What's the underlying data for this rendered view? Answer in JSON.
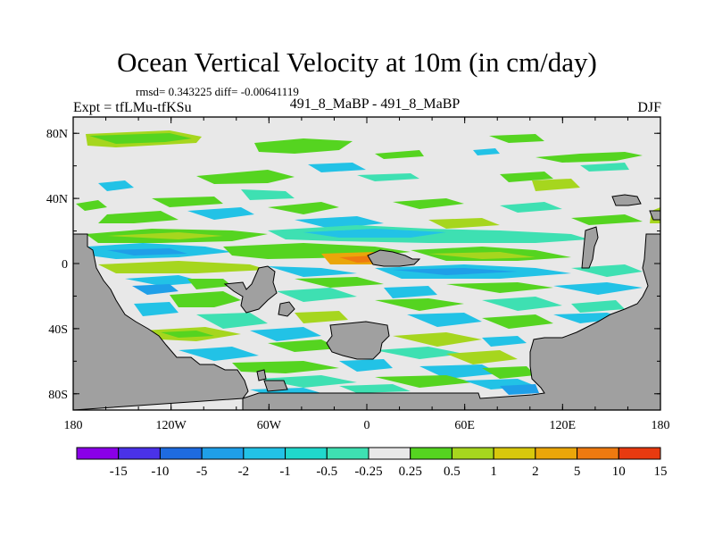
{
  "header": {
    "title": "Ocean Vertical Velocity at 10m (in cm/day)",
    "stats": "rmsd= 0.343225 diff= -0.00641119",
    "experiment": "Expt = tfLMu-tfKSu",
    "comparison": "491_8_MaBP - 491_8_MaBP",
    "season": "DJF"
  },
  "chart_data": {
    "type": "heatmap",
    "title": "Ocean Vertical Velocity at 10m (in cm/day)",
    "xlabel": "",
    "ylabel": "",
    "xlim": [
      -180,
      180
    ],
    "ylim": [
      -90,
      90
    ],
    "x_ticks": [
      {
        "value": -180,
        "label": "180"
      },
      {
        "value": -120,
        "label": "120W"
      },
      {
        "value": -60,
        "label": "60W"
      },
      {
        "value": 0,
        "label": "0"
      },
      {
        "value": 60,
        "label": "60E"
      },
      {
        "value": 120,
        "label": "120E"
      },
      {
        "value": 180,
        "label": "180"
      }
    ],
    "y_ticks": [
      {
        "value": 80,
        "label": "80N"
      },
      {
        "value": 40,
        "label": "40N"
      },
      {
        "value": 0,
        "label": "0"
      },
      {
        "value": -40,
        "label": "40S"
      },
      {
        "value": -80,
        "label": "80S"
      }
    ],
    "colorbar": {
      "labels": [
        "-15",
        "-10",
        "-5",
        "-2",
        "-1",
        "-0.5",
        "-0.25",
        "0.25",
        "0.5",
        "1",
        "2",
        "5",
        "10",
        "15"
      ],
      "colors": [
        "#8a00e8",
        "#4a32e8",
        "#1e6be0",
        "#1f9fe8",
        "#22c2e6",
        "#20d8cc",
        "#3ee0b2",
        "#e8e8e8",
        "#55d420",
        "#a6d61e",
        "#d8c80c",
        "#eaa60a",
        "#ee7a10",
        "#e83a10"
      ]
    },
    "land_color": "#a0a0a0",
    "background_color": "#e8e8e8"
  }
}
